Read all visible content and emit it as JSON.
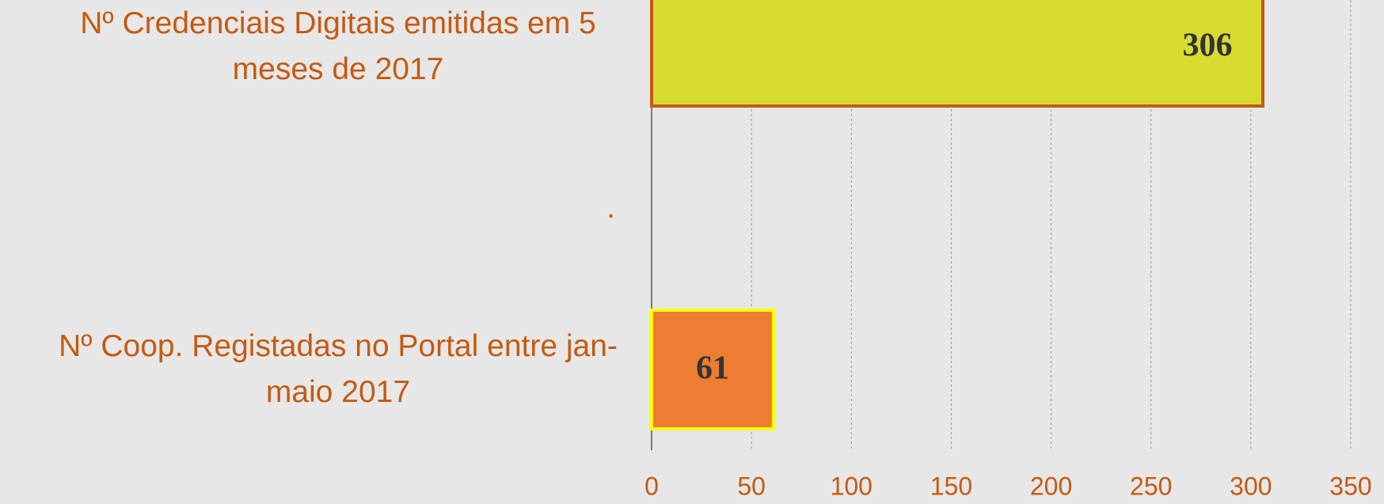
{
  "chart_data": {
    "type": "bar",
    "orientation": "horizontal",
    "categories": [
      "Nº Credenciais Digitais emitidas em 5 meses de 2017",
      ".",
      "Nº Coop. Registadas no Portal entre jan-maio 2017"
    ],
    "values": [
      306,
      null,
      61
    ],
    "colors": [
      "#d9dc30",
      null,
      "#ed7d31"
    ],
    "edge_colors": [
      "#c55a11",
      null,
      "#ffff00"
    ],
    "xlim": [
      0,
      350
    ],
    "xticks": [
      0,
      50,
      100,
      150,
      200,
      250,
      300,
      350
    ],
    "grid": true
  }
}
